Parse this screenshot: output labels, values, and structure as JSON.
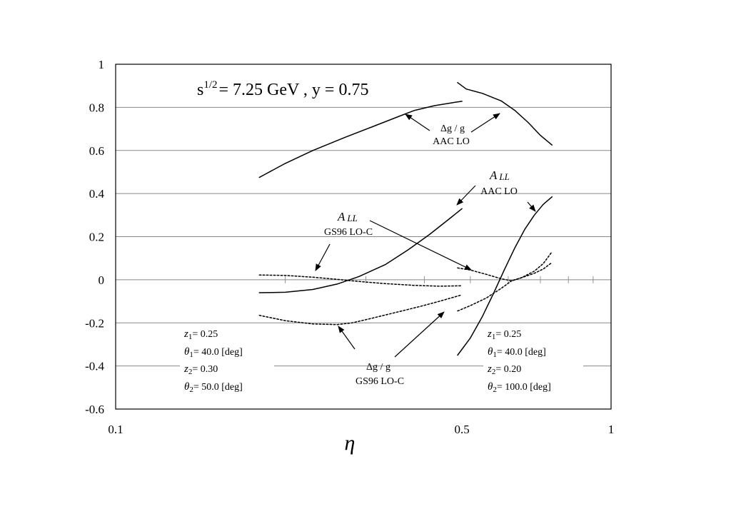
{
  "chart_data": {
    "type": "line",
    "title": {
      "sqrt_s_base": "s",
      "sqrt_s_exp": "1/2",
      "rest": "= 7.25 GeV ,  y = 0.75"
    },
    "xlabel": "η",
    "ylabel": "",
    "x_scale": "log",
    "xlim": [
      0.1,
      1
    ],
    "ylim": [
      -0.6,
      1
    ],
    "grid": "horizontal",
    "x_ticks": [
      {
        "value": 0.1,
        "label": "0.1"
      },
      {
        "value": 0.5,
        "label": "0.5"
      },
      {
        "value": 1,
        "label": "1"
      }
    ],
    "y_ticks": [
      {
        "value": 1,
        "label": "1"
      },
      {
        "value": 0.8,
        "label": "0.8"
      },
      {
        "value": 0.6,
        "label": "0.6"
      },
      {
        "value": 0.4,
        "label": "0.4"
      },
      {
        "value": 0.2,
        "label": "0.2"
      },
      {
        "value": 0,
        "label": "0"
      },
      {
        "value": -0.2,
        "label": "-0.2"
      },
      {
        "value": -0.4,
        "label": "-0.4"
      },
      {
        "value": -0.6,
        "label": "-0.6"
      }
    ],
    "zero_line_minor_ticks": [
      0.22,
      0.32,
      0.42,
      0.52,
      0.62,
      0.72,
      0.82,
      0.92
    ],
    "series": [
      {
        "style": "solid",
        "x": [
          0.195,
          0.22,
          0.25,
          0.29,
          0.33,
          0.37,
          0.4,
          0.44,
          0.48,
          0.5
        ],
        "y": [
          0.475,
          0.54,
          0.6,
          0.66,
          0.71,
          0.755,
          0.785,
          0.808,
          0.822,
          0.828
        ]
      },
      {
        "style": "solid",
        "x": [
          0.49,
          0.51,
          0.55,
          0.6,
          0.64,
          0.68,
          0.72,
          0.76
        ],
        "y": [
          0.915,
          0.885,
          0.865,
          0.83,
          0.785,
          0.73,
          0.67,
          0.625
        ]
      },
      {
        "style": "solid",
        "x": [
          0.195,
          0.22,
          0.25,
          0.28,
          0.31,
          0.35,
          0.39,
          0.43,
          0.47,
          0.5
        ],
        "y": [
          -0.06,
          -0.058,
          -0.045,
          -0.02,
          0.015,
          0.07,
          0.14,
          0.21,
          0.28,
          0.33
        ]
      },
      {
        "style": "solid",
        "x": [
          0.49,
          0.52,
          0.55,
          0.58,
          0.61,
          0.64,
          0.67,
          0.7,
          0.73,
          0.76
        ],
        "y": [
          -0.35,
          -0.27,
          -0.17,
          -0.06,
          0.05,
          0.15,
          0.235,
          0.3,
          0.35,
          0.385
        ]
      },
      {
        "style": "dotted",
        "x": [
          0.195,
          0.22,
          0.25,
          0.28,
          0.31,
          0.35,
          0.4,
          0.45,
          0.5
        ],
        "y": [
          0.022,
          0.02,
          0.012,
          0.002,
          -0.008,
          -0.018,
          -0.026,
          -0.03,
          -0.028
        ]
      },
      {
        "style": "dotted",
        "x": [
          0.195,
          0.22,
          0.25,
          0.28,
          0.3,
          0.33,
          0.37,
          0.41,
          0.45,
          0.5
        ],
        "y": [
          -0.165,
          -0.19,
          -0.205,
          -0.208,
          -0.2,
          -0.178,
          -0.15,
          -0.125,
          -0.1,
          -0.07
        ]
      },
      {
        "style": "dotted",
        "x": [
          0.49,
          0.52,
          0.56,
          0.6,
          0.63,
          0.66,
          0.7,
          0.73,
          0.76
        ],
        "y": [
          0.055,
          0.045,
          0.025,
          0.005,
          -0.005,
          0.01,
          0.04,
          0.075,
          0.13
        ]
      },
      {
        "style": "dotted",
        "x": [
          0.49,
          0.52,
          0.56,
          0.6,
          0.63,
          0.66,
          0.7,
          0.73,
          0.76
        ],
        "y": [
          -0.145,
          -0.12,
          -0.085,
          -0.04,
          -0.005,
          0.01,
          0.03,
          0.05,
          0.08
        ]
      }
    ],
    "annotations": {
      "dg_aac": {
        "line1": "Δg / g",
        "line2": "AAC LO"
      },
      "all_aac": {
        "symbol": "A",
        "sub": "LL",
        "line2": "AAC LO"
      },
      "all_gs96": {
        "symbol": "A",
        "sub": "LL",
        "line2": "GS96 LO-C"
      },
      "dg_gs96": {
        "line1": "Δg / g",
        "line2": "GS96 LO-C"
      },
      "left_params": [
        {
          "sym": "z",
          "sub": "1",
          "value": "= 0.25"
        },
        {
          "sym": "θ",
          "sub": "1",
          "value": "= 40.0 [deg]"
        },
        {
          "sym": "z",
          "sub": "2",
          "value": "= 0.30"
        },
        {
          "sym": "θ",
          "sub": "2",
          "value": "= 50.0 [deg]"
        }
      ],
      "right_params": [
        {
          "sym": "z",
          "sub": "1",
          "value": "= 0.25"
        },
        {
          "sym": "θ",
          "sub": "1",
          "value": "= 40.0 [deg]"
        },
        {
          "sym": "z",
          "sub": "2",
          "value": "= 0.20"
        },
        {
          "sym": "θ",
          "sub": "2",
          "value": "= 100.0 [deg]"
        }
      ]
    }
  }
}
